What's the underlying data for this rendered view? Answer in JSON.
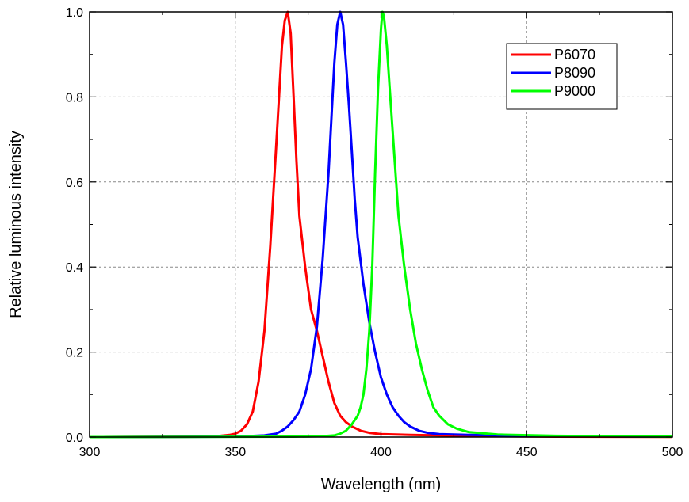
{
  "chart_data": {
    "type": "line",
    "title": "",
    "xlabel": "Wavelength (nm)",
    "ylabel": "Relative  luminous  intensity",
    "xlim": [
      300,
      500
    ],
    "ylim": [
      0,
      1.0
    ],
    "x_ticks": [
      "300",
      "350",
      "400",
      "450",
      "500"
    ],
    "y_ticks": [
      "0.0",
      "0.2",
      "0.4",
      "0.6",
      "0.8",
      "1.0"
    ],
    "grid": true,
    "legend_position": "top-right",
    "series": [
      {
        "name": "P6070",
        "color": "#ff0000",
        "points": [
          [
            300,
            0
          ],
          [
            340,
            0.001
          ],
          [
            345,
            0.003
          ],
          [
            348,
            0.005
          ],
          [
            350,
            0.008
          ],
          [
            352,
            0.015
          ],
          [
            354,
            0.03
          ],
          [
            356,
            0.06
          ],
          [
            358,
            0.13
          ],
          [
            360,
            0.25
          ],
          [
            362,
            0.45
          ],
          [
            364,
            0.68
          ],
          [
            365,
            0.8
          ],
          [
            366,
            0.92
          ],
          [
            367,
            0.98
          ],
          [
            368,
            1.0
          ],
          [
            369,
            0.95
          ],
          [
            370,
            0.8
          ],
          [
            371,
            0.65
          ],
          [
            372,
            0.52
          ],
          [
            374,
            0.4
          ],
          [
            376,
            0.3
          ],
          [
            378,
            0.25
          ],
          [
            380,
            0.19
          ],
          [
            382,
            0.13
          ],
          [
            384,
            0.08
          ],
          [
            386,
            0.05
          ],
          [
            388,
            0.035
          ],
          [
            390,
            0.025
          ],
          [
            393,
            0.015
          ],
          [
            396,
            0.01
          ],
          [
            400,
            0.007
          ],
          [
            410,
            0.005
          ],
          [
            420,
            0.004
          ],
          [
            440,
            0.002
          ],
          [
            460,
            0.001
          ],
          [
            500,
            0.0005
          ]
        ]
      },
      {
        "name": "P8090",
        "color": "#0000ff",
        "points": [
          [
            300,
            0
          ],
          [
            350,
            0.001
          ],
          [
            360,
            0.004
          ],
          [
            364,
            0.008
          ],
          [
            366,
            0.015
          ],
          [
            368,
            0.025
          ],
          [
            370,
            0.04
          ],
          [
            372,
            0.06
          ],
          [
            374,
            0.1
          ],
          [
            376,
            0.16
          ],
          [
            378,
            0.26
          ],
          [
            380,
            0.42
          ],
          [
            382,
            0.62
          ],
          [
            383,
            0.75
          ],
          [
            384,
            0.88
          ],
          [
            385,
            0.97
          ],
          [
            386,
            1.0
          ],
          [
            387,
            0.97
          ],
          [
            388,
            0.88
          ],
          [
            389,
            0.78
          ],
          [
            390,
            0.67
          ],
          [
            391,
            0.56
          ],
          [
            392,
            0.47
          ],
          [
            394,
            0.36
          ],
          [
            396,
            0.27
          ],
          [
            398,
            0.2
          ],
          [
            400,
            0.14
          ],
          [
            402,
            0.1
          ],
          [
            404,
            0.07
          ],
          [
            406,
            0.05
          ],
          [
            408,
            0.035
          ],
          [
            410,
            0.025
          ],
          [
            413,
            0.015
          ],
          [
            416,
            0.01
          ],
          [
            420,
            0.007
          ],
          [
            430,
            0.005
          ],
          [
            450,
            0.003
          ],
          [
            470,
            0.002
          ],
          [
            500,
            0.001
          ]
        ]
      },
      {
        "name": "P9000",
        "color": "#00ff00",
        "points": [
          [
            300,
            0
          ],
          [
            370,
            0.001
          ],
          [
            380,
            0.002
          ],
          [
            384,
            0.004
          ],
          [
            386,
            0.008
          ],
          [
            388,
            0.015
          ],
          [
            390,
            0.03
          ],
          [
            392,
            0.05
          ],
          [
            393,
            0.07
          ],
          [
            394,
            0.1
          ],
          [
            395,
            0.16
          ],
          [
            396,
            0.25
          ],
          [
            397,
            0.4
          ],
          [
            398,
            0.62
          ],
          [
            399,
            0.82
          ],
          [
            400,
            0.96
          ],
          [
            400.5,
            1.0
          ],
          [
            401,
            0.99
          ],
          [
            402,
            0.92
          ],
          [
            403,
            0.82
          ],
          [
            404,
            0.72
          ],
          [
            405,
            0.62
          ],
          [
            406,
            0.52
          ],
          [
            408,
            0.4
          ],
          [
            410,
            0.3
          ],
          [
            412,
            0.22
          ],
          [
            414,
            0.16
          ],
          [
            416,
            0.11
          ],
          [
            418,
            0.07
          ],
          [
            420,
            0.05
          ],
          [
            423,
            0.03
          ],
          [
            426,
            0.02
          ],
          [
            430,
            0.012
          ],
          [
            440,
            0.006
          ],
          [
            460,
            0.003
          ],
          [
            500,
            0.001
          ]
        ]
      }
    ]
  }
}
